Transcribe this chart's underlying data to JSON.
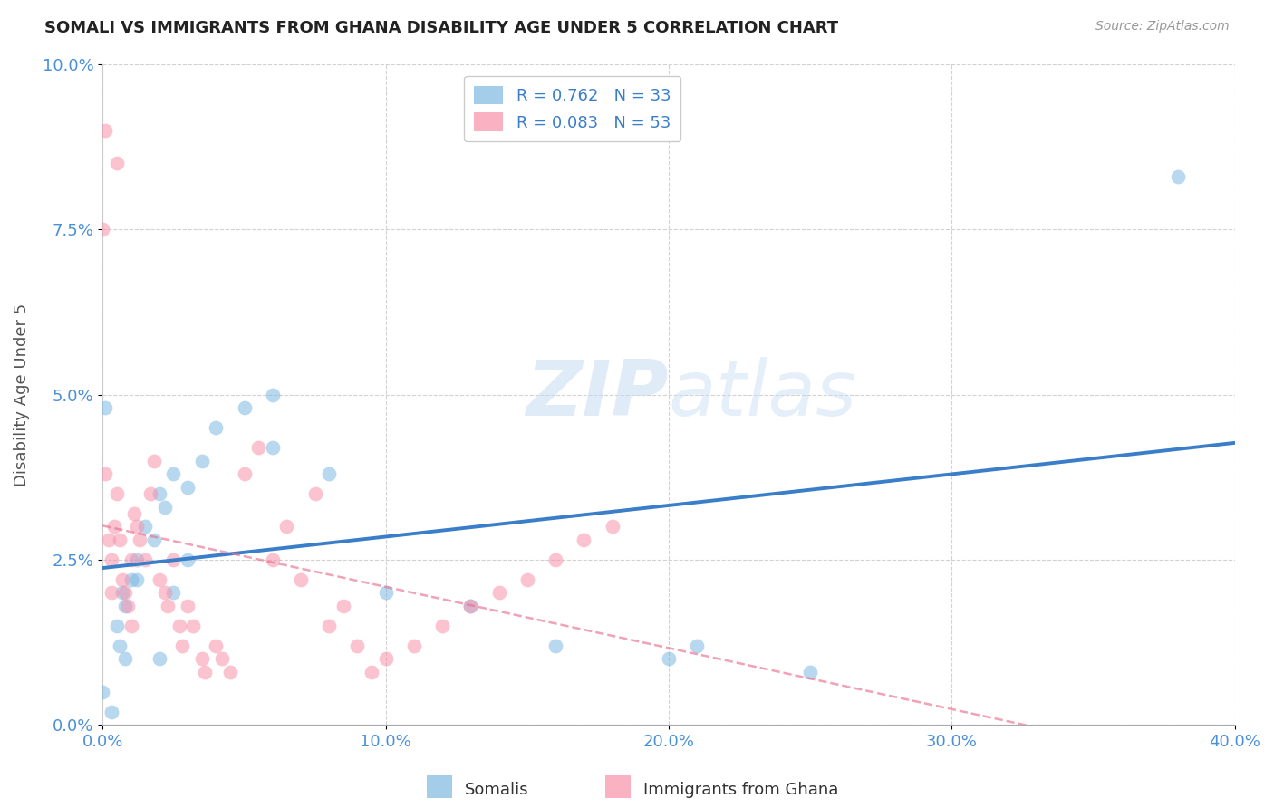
{
  "title": "SOMALI VS IMMIGRANTS FROM GHANA DISABILITY AGE UNDER 5 CORRELATION CHART",
  "source": "Source: ZipAtlas.com",
  "ylabel": "Disability Age Under 5",
  "xlim": [
    0.0,
    0.4
  ],
  "ylim": [
    0.0,
    0.1
  ],
  "somali_R": "0.762",
  "somali_N": "33",
  "ghana_R": "0.083",
  "ghana_N": "53",
  "somali_color": "#7db8e0",
  "ghana_color": "#f892aa",
  "somali_line_color": "#3a7dc9",
  "ghana_line_color": "#e87090",
  "watermark_color": "#c5ddf2",
  "somali_points_x": [
    0.001,
    0.0,
    0.003,
    0.005,
    0.006,
    0.007,
    0.008,
    0.01,
    0.012,
    0.015,
    0.018,
    0.02,
    0.022,
    0.025,
    0.03,
    0.035,
    0.04,
    0.05,
    0.06,
    0.008,
    0.012,
    0.02,
    0.025,
    0.03,
    0.1,
    0.13,
    0.16,
    0.2,
    0.21,
    0.06,
    0.08,
    0.25,
    0.38
  ],
  "somali_points_y": [
    0.048,
    0.005,
    0.002,
    0.015,
    0.012,
    0.02,
    0.018,
    0.022,
    0.025,
    0.03,
    0.028,
    0.035,
    0.033,
    0.038,
    0.036,
    0.04,
    0.045,
    0.048,
    0.05,
    0.01,
    0.022,
    0.01,
    0.02,
    0.025,
    0.02,
    0.018,
    0.012,
    0.01,
    0.012,
    0.042,
    0.038,
    0.008,
    0.083
  ],
  "ghana_points_x": [
    0.0,
    0.005,
    0.001,
    0.003,
    0.004,
    0.006,
    0.007,
    0.008,
    0.009,
    0.01,
    0.011,
    0.012,
    0.013,
    0.015,
    0.017,
    0.018,
    0.02,
    0.022,
    0.023,
    0.025,
    0.027,
    0.028,
    0.03,
    0.032,
    0.035,
    0.036,
    0.04,
    0.042,
    0.045,
    0.05,
    0.055,
    0.06,
    0.065,
    0.07,
    0.075,
    0.08,
    0.085,
    0.09,
    0.095,
    0.1,
    0.11,
    0.12,
    0.13,
    0.14,
    0.15,
    0.16,
    0.17,
    0.18,
    0.001,
    0.002,
    0.005,
    0.003,
    0.01
  ],
  "ghana_points_y": [
    0.075,
    0.085,
    0.09,
    0.025,
    0.03,
    0.028,
    0.022,
    0.02,
    0.018,
    0.025,
    0.032,
    0.03,
    0.028,
    0.025,
    0.035,
    0.04,
    0.022,
    0.02,
    0.018,
    0.025,
    0.015,
    0.012,
    0.018,
    0.015,
    0.01,
    0.008,
    0.012,
    0.01,
    0.008,
    0.038,
    0.042,
    0.025,
    0.03,
    0.022,
    0.035,
    0.015,
    0.018,
    0.012,
    0.008,
    0.01,
    0.012,
    0.015,
    0.018,
    0.02,
    0.022,
    0.025,
    0.028,
    0.03,
    0.038,
    0.028,
    0.035,
    0.02,
    0.015
  ]
}
